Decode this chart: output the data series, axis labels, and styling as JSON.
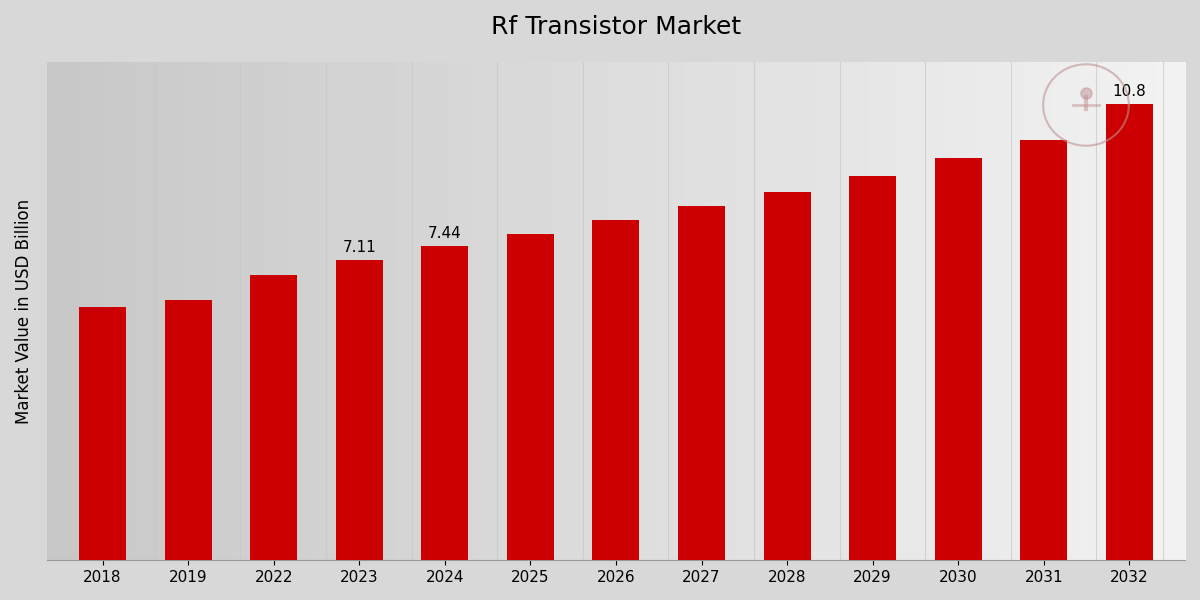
{
  "title": "Rf Transistor Market",
  "ylabel": "Market Value in USD Billion",
  "years": [
    "2018",
    "2019",
    "2022",
    "2023",
    "2024",
    "2025",
    "2026",
    "2027",
    "2028",
    "2029",
    "2030",
    "2031",
    "2032"
  ],
  "values": [
    6.0,
    6.15,
    6.75,
    7.11,
    7.44,
    7.72,
    8.05,
    8.38,
    8.72,
    9.1,
    9.52,
    9.95,
    10.8
  ],
  "bar_color": "#CC0000",
  "bar_labels": {
    "2023": "7.11",
    "2024": "7.44",
    "2032": "10.8"
  },
  "label_fontsize": 11,
  "title_fontsize": 18,
  "ylabel_fontsize": 12,
  "xtick_fontsize": 11,
  "ylim": [
    0,
    11.8
  ],
  "grid_color": "#c8c8c8",
  "bg_color_left": "#d0d0d0",
  "bg_color_center": "#f0f0f0",
  "bar_width": 0.55,
  "figsize": [
    12,
    6
  ]
}
